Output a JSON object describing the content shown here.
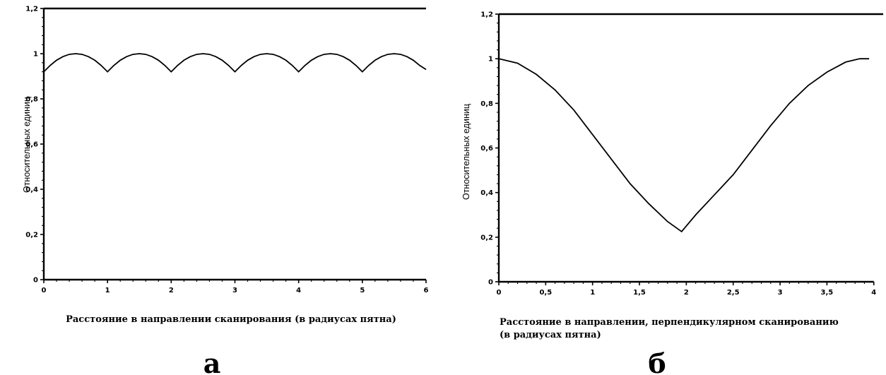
{
  "chart_data": [
    {
      "type": "line",
      "panel_label": "а",
      "xlabel": "Расстояние в направлении сканирования (в радиусах пятна)",
      "ylabel": "Относительных единиц",
      "xlim": [
        0,
        6
      ],
      "ylim": [
        0,
        1.2
      ],
      "x_ticks": [
        "0",
        "1",
        "2",
        "3",
        "4",
        "5",
        "6"
      ],
      "y_ticks": [
        "0",
        "0,2",
        "0,4",
        "0,6",
        "0,8",
        "1",
        "1,2"
      ],
      "grid": false,
      "series": [
        {
          "x": [
            0,
            0.1,
            0.2,
            0.3,
            0.4,
            0.5,
            0.6,
            0.7,
            0.8,
            0.9,
            1.0,
            1.1,
            1.2,
            1.3,
            1.4,
            1.5,
            1.6,
            1.7,
            1.8,
            1.9,
            2.0,
            2.1,
            2.2,
            2.3,
            2.4,
            2.5,
            2.6,
            2.7,
            2.8,
            2.9,
            3.0,
            3.1,
            3.2,
            3.3,
            3.4,
            3.5,
            3.6,
            3.7,
            3.8,
            3.9,
            4.0,
            4.1,
            4.2,
            4.3,
            4.4,
            4.5,
            4.6,
            4.7,
            4.8,
            4.9,
            5.0,
            5.1,
            5.2,
            5.3,
            5.4,
            5.5,
            5.6,
            5.7,
            5.8,
            5.9,
            6.0
          ],
          "y": [
            0.92,
            0.948,
            0.971,
            0.987,
            0.997,
            1.0,
            0.997,
            0.987,
            0.971,
            0.948,
            0.92,
            0.948,
            0.971,
            0.987,
            0.997,
            1.0,
            0.997,
            0.987,
            0.971,
            0.948,
            0.92,
            0.948,
            0.971,
            0.987,
            0.997,
            1.0,
            0.997,
            0.987,
            0.971,
            0.948,
            0.92,
            0.948,
            0.971,
            0.987,
            0.997,
            1.0,
            0.997,
            0.987,
            0.971,
            0.948,
            0.92,
            0.948,
            0.971,
            0.987,
            0.997,
            1.0,
            0.997,
            0.987,
            0.971,
            0.948,
            0.92,
            0.948,
            0.971,
            0.987,
            0.997,
            1.0,
            0.997,
            0.987,
            0.971,
            0.948,
            0.93
          ]
        }
      ]
    },
    {
      "type": "line",
      "panel_label": "б",
      "xlabel": "Расстояние в направлении, перпендикулярном сканированию (в радиусах пятна)",
      "xlabel_lines": [
        "Расстояние в направлении, перпендикулярном сканированию",
        "(в радиусах пятна)"
      ],
      "ylabel": "Относительных единиц",
      "xlim": [
        0,
        4
      ],
      "ylim": [
        0,
        1.2
      ],
      "x_ticks": [
        "0",
        "0,5",
        "1",
        "1,5",
        "2",
        "2,5",
        "3",
        "3,5",
        "4"
      ],
      "y_ticks": [
        "0",
        "0,2",
        "0,4",
        "0,6",
        "0,8",
        "1",
        "1,2"
      ],
      "grid": false,
      "series": [
        {
          "x": [
            0,
            0.2,
            0.4,
            0.6,
            0.8,
            1.0,
            1.2,
            1.4,
            1.6,
            1.8,
            1.95,
            2.1,
            2.3,
            2.5,
            2.7,
            2.9,
            3.1,
            3.3,
            3.5,
            3.7,
            3.85,
            3.95
          ],
          "y": [
            1.0,
            0.98,
            0.93,
            0.86,
            0.77,
            0.66,
            0.55,
            0.44,
            0.35,
            0.27,
            0.225,
            0.3,
            0.39,
            0.48,
            0.59,
            0.7,
            0.8,
            0.88,
            0.94,
            0.985,
            1.0,
            1.0
          ]
        }
      ]
    }
  ]
}
